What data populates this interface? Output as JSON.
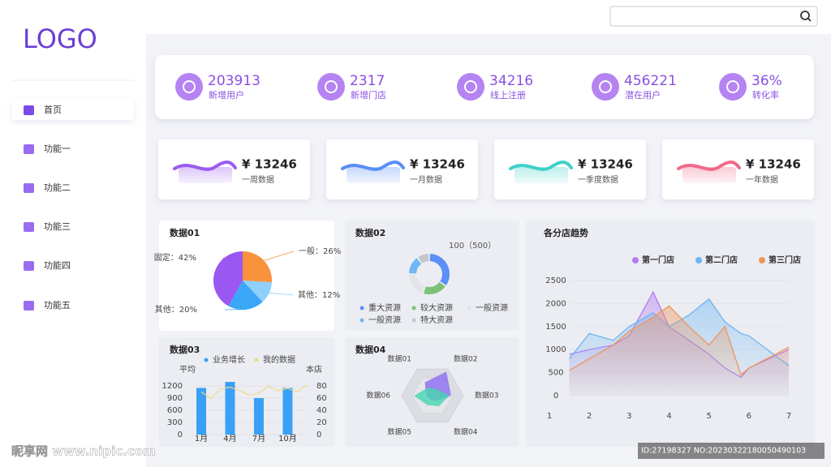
{
  "logo": "LOGO",
  "nav": [
    "首页",
    "功能一",
    "功能二",
    "功能三",
    "功能四",
    "功能五"
  ],
  "stats": [
    {
      "value": "203913",
      "label": "新增用户"
    },
    {
      "value": "2317",
      "label": "新增门店"
    },
    {
      "value": "34216",
      "label": "线上注册"
    },
    {
      "value": "456221",
      "label": "潜在用户"
    },
    {
      "value": "36%",
      "label": "转化率"
    }
  ],
  "summary": [
    {
      "amount": "¥ 13246",
      "label": "一周数据"
    },
    {
      "amount": "¥ 13246",
      "label": "一月数据"
    },
    {
      "amount": "¥ 13246",
      "label": "一季度数据"
    },
    {
      "amount": "¥ 13246",
      "label": "一年数据"
    }
  ],
  "chart_data": [
    {
      "type": "pie",
      "title": "数据01",
      "values": [
        26,
        12,
        20,
        42
      ],
      "value_labels": [
        "一般：26%",
        "其他：12%",
        "其他：20%",
        "固定：42%"
      ],
      "colors": [
        "#f7923a",
        "#8fd0fb",
        "#3ba6f7",
        "#9b57f2"
      ]
    },
    {
      "type": "donut",
      "title": "数据02",
      "center_label": "100（500）",
      "categories": [
        "重大资源",
        "较大资源",
        "一般资源",
        "一般资源",
        "特大资源"
      ],
      "values": [
        35,
        20,
        20,
        15,
        10
      ],
      "colors": [
        "#5b8ff9",
        "#7ec07a",
        "#e3e4e8",
        "#6fb7f5",
        "#c4c6cc"
      ]
    },
    {
      "type": "bar-line",
      "title": "数据03",
      "y_label": "平均",
      "y2_label": "本店",
      "categories": [
        "1月",
        null,
        null,
        "4月",
        null,
        null,
        "7月",
        null,
        null,
        "10月",
        null,
        null
      ],
      "series": [
        {
          "name": "业务增长",
          "type": "bar",
          "color": "#3aa0f5",
          "values": [
            1150,
            null,
            null,
            1300,
            null,
            null,
            900,
            null,
            null,
            1150,
            null,
            null
          ]
        },
        {
          "name": "我的数据",
          "type": "line",
          "axis": "y2",
          "color": "#f2d88a",
          "values": [
            70,
            60,
            75,
            78,
            72,
            65,
            68,
            80,
            72,
            76,
            70,
            82
          ]
        }
      ],
      "ylim": [
        0,
        1350
      ],
      "yticks": [
        0,
        300,
        600,
        900,
        1200
      ],
      "y2lim": [
        0,
        90
      ],
      "y2ticks": [
        0,
        20,
        40,
        60,
        80
      ]
    },
    {
      "type": "radar",
      "title": "数据04",
      "categories": [
        "数据01",
        "数据02",
        "数据03",
        "数据04",
        "数据05",
        "数据06"
      ],
      "rlim": [
        0,
        100
      ],
      "series": [
        {
          "color": "#8b6cf0",
          "values": [
            50,
            90,
            60,
            20,
            15,
            20
          ]
        },
        {
          "color": "#46d6b0",
          "values": [
            30,
            25,
            55,
            40,
            35,
            60
          ]
        }
      ]
    },
    {
      "type": "area",
      "title": "各分店趋势",
      "x": [
        1.5,
        2,
        2.6,
        3,
        3.6,
        4,
        4.5,
        5,
        5.4,
        5.8,
        6,
        7
      ],
      "series": [
        {
          "name": "第一门店",
          "color": "#b57af0",
          "values": [
            900,
            1000,
            1100,
            1300,
            2250,
            1500,
            1200,
            900,
            600,
            400,
            600,
            1000
          ]
        },
        {
          "name": "第二门店",
          "color": "#6cb6f5",
          "values": [
            800,
            1350,
            1200,
            1500,
            1800,
            1500,
            1750,
            2100,
            1600,
            1350,
            1300,
            650
          ]
        },
        {
          "name": "第三门店",
          "color": "#f0955a",
          "values": [
            550,
            800,
            1100,
            1400,
            1700,
            1950,
            1500,
            1100,
            1500,
            450,
            600,
            1050
          ]
        }
      ],
      "xlim": [
        1,
        7
      ],
      "xticks": [
        1,
        2,
        3,
        4,
        5,
        6,
        7
      ],
      "ylim": [
        0,
        2500
      ],
      "yticks": [
        0,
        500,
        1000,
        1500,
        2000,
        2500
      ],
      "grid": true,
      "legend": "top-right"
    }
  ],
  "watermark": [
    "昵享网 www.nipic.com",
    "ID:27198327 NO:20230322180050490103"
  ]
}
